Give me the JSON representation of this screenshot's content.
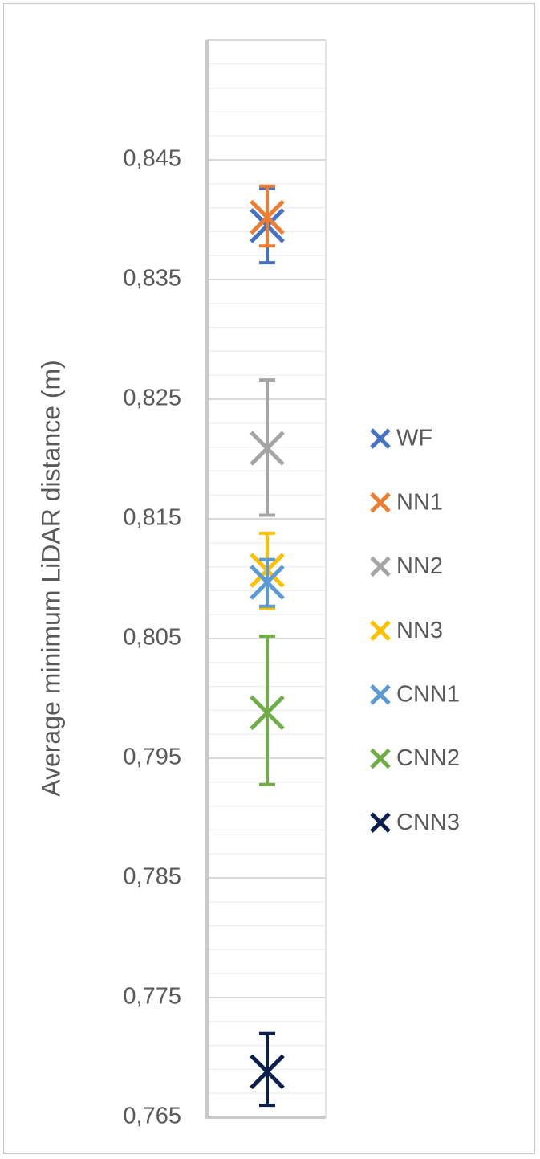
{
  "chart_data": {
    "type": "scatter",
    "title": "",
    "xlabel": "",
    "ylabel": "Average minimum LiDAR distance (m)",
    "ylim": [
      0.765,
      0.855
    ],
    "major_tick_step": 0.01,
    "y_ticks": [
      "0,765",
      "0,775",
      "0,785",
      "0,795",
      "0,805",
      "0,815",
      "0,825",
      "0,835",
      "0,845"
    ],
    "grid": "on",
    "legend_position": "right",
    "series": [
      {
        "name": "WF",
        "color": "#4472C4",
        "value": 0.8395,
        "err_low": 0.8364,
        "err_high": 0.8426
      },
      {
        "name": "NN1",
        "color": "#ED7D31",
        "value": 0.8402,
        "err_low": 0.8378,
        "err_high": 0.8428
      },
      {
        "name": "NN2",
        "color": "#A5A5A5",
        "value": 0.8209,
        "err_low": 0.8153,
        "err_high": 0.8266
      },
      {
        "name": "NN3",
        "color": "#FFC000",
        "value": 0.8107,
        "err_low": 0.8075,
        "err_high": 0.8138
      },
      {
        "name": "CNN1",
        "color": "#5B9BD5",
        "value": 0.8097,
        "err_low": 0.8077,
        "err_high": 0.8116
      },
      {
        "name": "CNN2",
        "color": "#70AD47",
        "value": 0.7988,
        "err_low": 0.7928,
        "err_high": 0.8052
      },
      {
        "name": "CNN3",
        "color": "#0B1F4F",
        "value": 0.7688,
        "err_low": 0.766,
        "err_high": 0.772
      }
    ]
  }
}
